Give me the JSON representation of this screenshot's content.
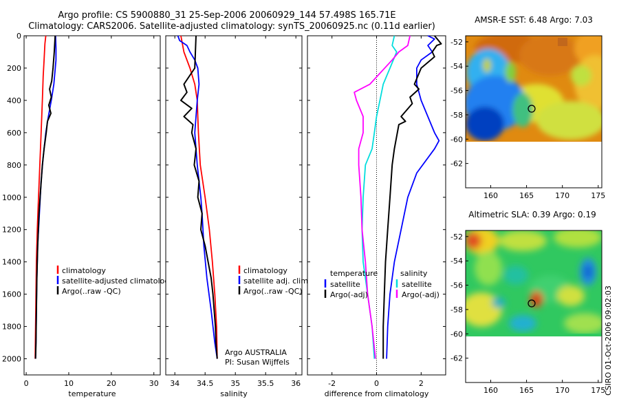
{
  "header": {
    "line1": "Argo profile: CS 5900880_31 25-Sep-2006 20060929_144 57.498S 165.71E",
    "line2": "Climatology: CARS2006. Satellite-adjusted climatology: synTS_20060925.nc (0.11d earlier)"
  },
  "side_credit": "CSIRO 01-Oct-2006 09:02:03",
  "colors": {
    "red": "#ff0000",
    "blue": "#0000ff",
    "black": "#000000",
    "cyan": "#00eeee",
    "magenta": "#ff00ff"
  },
  "chart_data": [
    {
      "type": "line",
      "id": "temperature",
      "xlabel": "temperature",
      "xlim": [
        -0.5,
        31.5
      ],
      "ylim": [
        2100,
        0
      ],
      "xticks": [
        0,
        10,
        20,
        30
      ],
      "yticks": [
        0,
        200,
        400,
        600,
        800,
        1000,
        1200,
        1400,
        1600,
        1800,
        2000
      ],
      "y_reversed": true,
      "legend": [
        "climatology",
        "satellite-adjusted climatology",
        "Argo(..raw -QC)"
      ],
      "series": [
        {
          "name": "climatology",
          "color": "#ff0000",
          "points": [
            [
              4.6,
              0
            ],
            [
              4.4,
              50
            ],
            [
              4.2,
              150
            ],
            [
              4.0,
              250
            ],
            [
              3.8,
              400
            ],
            [
              3.5,
              600
            ],
            [
              3.2,
              800
            ],
            [
              2.9,
              1000
            ],
            [
              2.6,
              1200
            ],
            [
              2.4,
              1400
            ],
            [
              2.3,
              1600
            ],
            [
              2.2,
              1800
            ],
            [
              2.1,
              2000
            ]
          ]
        },
        {
          "name": "satellite-adjusted climatology",
          "color": "#0000ff",
          "points": [
            [
              6.9,
              0
            ],
            [
              7.0,
              80
            ],
            [
              7.0,
              150
            ],
            [
              6.5,
              300
            ],
            [
              5.9,
              400
            ],
            [
              5.2,
              500
            ],
            [
              4.6,
              600
            ],
            [
              4.0,
              750
            ],
            [
              3.5,
              900
            ],
            [
              3.1,
              1100
            ],
            [
              2.7,
              1300
            ],
            [
              2.5,
              1500
            ],
            [
              2.4,
              1700
            ],
            [
              2.3,
              1900
            ],
            [
              2.2,
              2000
            ]
          ]
        },
        {
          "name": "Argo(..raw -QC)",
          "color": "#000000",
          "points": [
            [
              6.8,
              0
            ],
            [
              6.6,
              100
            ],
            [
              6.3,
              200
            ],
            [
              6.0,
              280
            ],
            [
              5.5,
              330
            ],
            [
              5.9,
              380
            ],
            [
              5.3,
              430
            ],
            [
              5.8,
              480
            ],
            [
              5.0,
              530
            ],
            [
              4.7,
              600
            ],
            [
              4.2,
              700
            ],
            [
              3.8,
              800
            ],
            [
              3.4,
              950
            ],
            [
              3.0,
              1100
            ],
            [
              2.7,
              1300
            ],
            [
              2.5,
              1500
            ],
            [
              2.4,
              1700
            ],
            [
              2.3,
              1900
            ],
            [
              2.2,
              2000
            ]
          ]
        }
      ]
    },
    {
      "type": "line",
      "id": "salinity",
      "xlabel": "salinity",
      "xlim": [
        33.85,
        36.1
      ],
      "ylim": [
        2100,
        0
      ],
      "xticks": [
        34,
        34.5,
        35,
        35.5,
        36
      ],
      "yticks": [],
      "y_reversed": true,
      "legend": [
        "climatology",
        "satellite adj. clim.",
        "Argo(..raw -QC)"
      ],
      "annotation": [
        "Argo AUSTRALIA",
        "PI: Susan Wijffels"
      ],
      "series": [
        {
          "name": "climatology",
          "color": "#ff0000",
          "points": [
            [
              34.1,
              0
            ],
            [
              34.15,
              100
            ],
            [
              34.25,
              200
            ],
            [
              34.33,
              300
            ],
            [
              34.37,
              400
            ],
            [
              34.38,
              500
            ],
            [
              34.39,
              600
            ],
            [
              34.42,
              800
            ],
            [
              34.5,
              1000
            ],
            [
              34.57,
              1200
            ],
            [
              34.62,
              1400
            ],
            [
              34.66,
              1600
            ],
            [
              34.69,
              1800
            ],
            [
              34.7,
              2000
            ]
          ]
        },
        {
          "name": "satellite adj. clim.",
          "color": "#0000ff",
          "points": [
            [
              34.05,
              0
            ],
            [
              34.08,
              30
            ],
            [
              34.2,
              60
            ],
            [
              34.25,
              100
            ],
            [
              34.33,
              150
            ],
            [
              34.38,
              200
            ],
            [
              34.4,
              300
            ],
            [
              34.37,
              400
            ],
            [
              34.35,
              500
            ],
            [
              34.33,
              600
            ],
            [
              34.35,
              700
            ],
            [
              34.37,
              800
            ],
            [
              34.4,
              900
            ],
            [
              34.43,
              1000
            ],
            [
              34.45,
              1100
            ],
            [
              34.48,
              1300
            ],
            [
              34.53,
              1500
            ],
            [
              34.6,
              1700
            ],
            [
              34.66,
              1900
            ],
            [
              34.7,
              2000
            ]
          ]
        },
        {
          "name": "Argo(..raw -QC)",
          "color": "#000000",
          "points": [
            [
              34.35,
              0
            ],
            [
              34.34,
              100
            ],
            [
              34.33,
              200
            ],
            [
              34.15,
              300
            ],
            [
              34.2,
              350
            ],
            [
              34.1,
              400
            ],
            [
              34.28,
              450
            ],
            [
              34.15,
              500
            ],
            [
              34.3,
              550
            ],
            [
              34.28,
              600
            ],
            [
              34.35,
              700
            ],
            [
              34.32,
              800
            ],
            [
              34.4,
              900
            ],
            [
              34.38,
              1000
            ],
            [
              34.45,
              1100
            ],
            [
              34.43,
              1200
            ],
            [
              34.5,
              1300
            ],
            [
              34.55,
              1400
            ],
            [
              34.6,
              1500
            ],
            [
              34.63,
              1600
            ],
            [
              34.65,
              1700
            ],
            [
              34.67,
              1800
            ],
            [
              34.68,
              1900
            ],
            [
              34.7,
              2000
            ]
          ]
        }
      ]
    },
    {
      "type": "line",
      "id": "difference",
      "xlabel": "difference from climatology",
      "xlim": [
        -3.1,
        3.1
      ],
      "ylim": [
        2100,
        0
      ],
      "xticks": [
        -2,
        0,
        2
      ],
      "yticks": [],
      "y_reversed": true,
      "legend_left_title": "temperature",
      "legend_right_title": "salinity",
      "legend": [
        "satellite",
        "Argo(-adj)",
        "satellite",
        "Argo(-adj)"
      ],
      "series": [
        {
          "name": "satellite",
          "group": "temperature",
          "color": "#0000ff",
          "points": [
            [
              2.3,
              0
            ],
            [
              2.6,
              20
            ],
            [
              2.3,
              60
            ],
            [
              2.5,
              100
            ],
            [
              2.0,
              150
            ],
            [
              1.8,
              200
            ],
            [
              1.8,
              300
            ],
            [
              2.0,
              400
            ],
            [
              2.6,
              600
            ],
            [
              2.8,
              650
            ],
            [
              2.6,
              700
            ],
            [
              1.8,
              850
            ],
            [
              1.4,
              1000
            ],
            [
              1.1,
              1200
            ],
            [
              0.8,
              1400
            ],
            [
              0.6,
              1600
            ],
            [
              0.5,
              1800
            ],
            [
              0.45,
              2000
            ]
          ]
        },
        {
          "name": "Argo(-adj)",
          "group": "temperature",
          "color": "#000000",
          "points": [
            [
              2.6,
              0
            ],
            [
              2.9,
              50
            ],
            [
              2.7,
              60
            ],
            [
              2.5,
              100
            ],
            [
              2.6,
              130
            ],
            [
              2.0,
              200
            ],
            [
              1.7,
              300
            ],
            [
              1.9,
              330
            ],
            [
              1.5,
              380
            ],
            [
              1.6,
              420
            ],
            [
              1.1,
              500
            ],
            [
              1.3,
              530
            ],
            [
              1.0,
              550
            ],
            [
              0.8,
              700
            ],
            [
              0.7,
              800
            ],
            [
              0.6,
              1000
            ],
            [
              0.5,
              1200
            ],
            [
              0.4,
              1400
            ],
            [
              0.35,
              1600
            ],
            [
              0.3,
              1800
            ],
            [
              0.3,
              2000
            ]
          ]
        },
        {
          "name": "satellite",
          "group": "salinity",
          "color": "#00dddd",
          "points": [
            [
              0.8,
              0
            ],
            [
              0.7,
              60
            ],
            [
              0.9,
              100
            ],
            [
              0.6,
              200
            ],
            [
              0.3,
              300
            ],
            [
              0.15,
              400
            ],
            [
              0.0,
              500
            ],
            [
              -0.1,
              600
            ],
            [
              -0.2,
              700
            ],
            [
              -0.5,
              800
            ],
            [
              -0.6,
              1000
            ],
            [
              -0.65,
              1200
            ],
            [
              -0.6,
              1400
            ],
            [
              -0.4,
              1600
            ],
            [
              -0.2,
              1800
            ],
            [
              -0.1,
              2000
            ]
          ]
        },
        {
          "name": "Argo(-adj)",
          "group": "salinity",
          "color": "#ff00ff",
          "points": [
            [
              1.5,
              0
            ],
            [
              1.4,
              60
            ],
            [
              1.0,
              100
            ],
            [
              0.7,
              150
            ],
            [
              -0.3,
              300
            ],
            [
              -1.0,
              350
            ],
            [
              -0.9,
              400
            ],
            [
              -0.6,
              500
            ],
            [
              -0.6,
              600
            ],
            [
              -0.8,
              700
            ],
            [
              -0.8,
              800
            ],
            [
              -0.7,
              1000
            ],
            [
              -0.65,
              1200
            ],
            [
              -0.5,
              1400
            ],
            [
              -0.4,
              1600
            ],
            [
              -0.2,
              1800
            ],
            [
              -0.05,
              2000
            ]
          ]
        }
      ]
    },
    {
      "type": "heatmap",
      "id": "sst_map",
      "title": "AMSR-E SST: 6.48 Argo: 7.03",
      "xlim": [
        156.5,
        175.5
      ],
      "ylim": [
        -64,
        -51.5
      ],
      "xticks": [
        160,
        165,
        170,
        175
      ],
      "yticks": [
        -52,
        -54,
        -56,
        -58,
        -60,
        -62
      ],
      "data_extent_y": [
        -60,
        -51.5
      ],
      "argo_position": [
        165.71,
        -57.498
      ]
    },
    {
      "type": "heatmap",
      "id": "sla_map",
      "title": "Altimetric SLA: 0.39 Argo: 0.19",
      "xlim": [
        156.5,
        175.5
      ],
      "ylim": [
        -64,
        -51.5
      ],
      "xticks": [
        160,
        165,
        170,
        175
      ],
      "yticks": [
        -52,
        -54,
        -56,
        -58,
        -60,
        -62
      ],
      "data_extent_y": [
        -60,
        -51.5
      ],
      "argo_position": [
        165.71,
        -57.498
      ]
    }
  ]
}
